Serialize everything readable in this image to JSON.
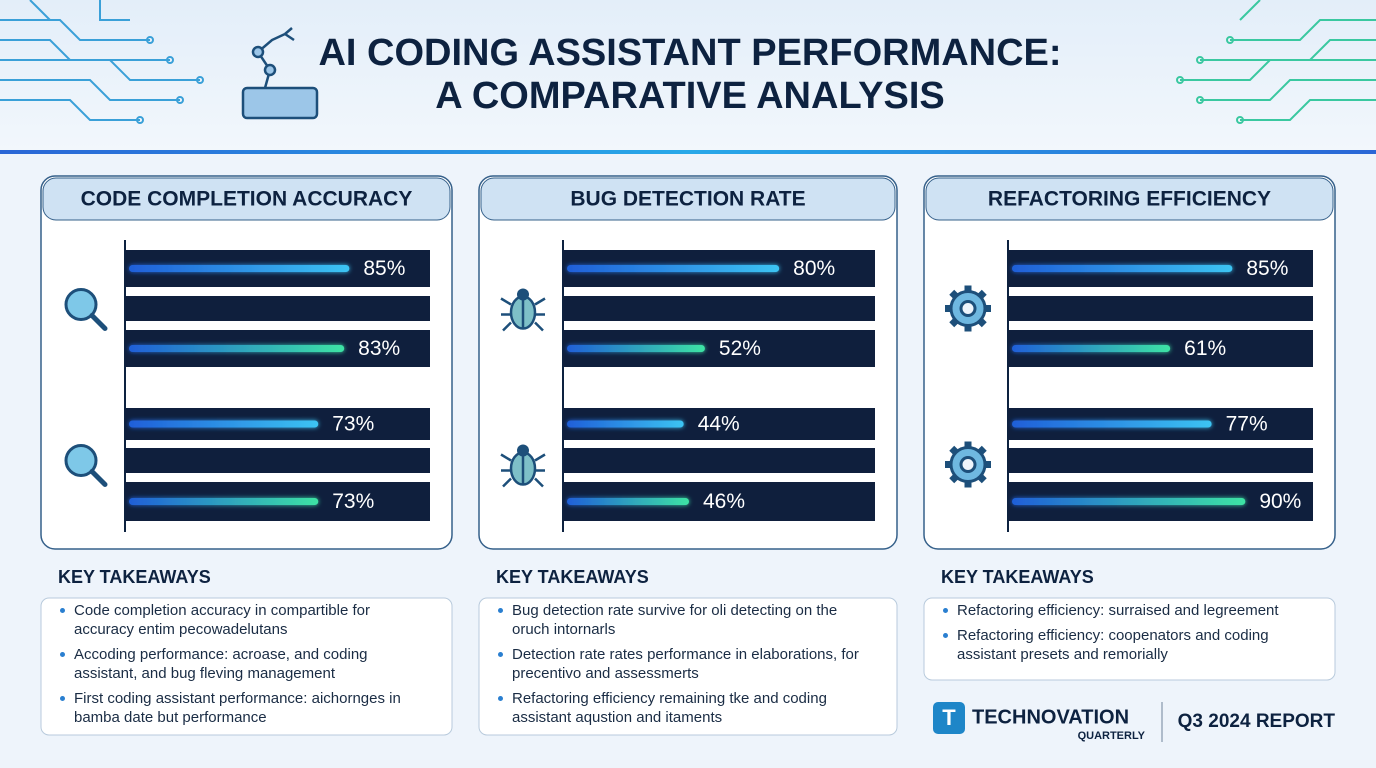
{
  "title_lines": [
    "AI CODING ASSISTANT PERFORMANCE:",
    "A COMPARATIVE ANALYSIS"
  ],
  "chart_data": [
    {
      "type": "bar",
      "title": "CODE COMPLETION ACCURACY",
      "values": [
        85,
        83,
        73,
        73
      ],
      "value_labels": [
        "85%",
        "83%",
        "73%",
        "73%"
      ],
      "colors": [
        "#3cc4f2",
        "#3de3a4",
        "#3cc4f2",
        "#3de3a4"
      ],
      "xlim": [
        0,
        100
      ],
      "takeaways_heading": "KEY TAKEAWAYS",
      "takeaways": [
        "Code completion accuracy in compartible for accuracy entim pecowadelutans",
        "Accoding performance: acroase, and coding assistant, and bug fleving management",
        "First coding assistant performance: aichornges in bamba date but performance"
      ]
    },
    {
      "type": "bar",
      "title": "BUG DETECTION RATE",
      "values": [
        80,
        52,
        44,
        46
      ],
      "value_labels": [
        "80%",
        "52%",
        "44%",
        "46%"
      ],
      "colors": [
        "#3cc4f2",
        "#3de3a4",
        "#3cc4f2",
        "#3de3a4"
      ],
      "xlim": [
        0,
        100
      ],
      "takeaways_heading": "KEY TAKEAWAYS",
      "takeaways": [
        "Bug detection rate survive for oli detecting on the oruch intornarls",
        "Detection rate rates performance in elaborations, for precentivo and assessmerts",
        "Refactoring efficiency remaining tke and coding assistant aqustion and itaments"
      ]
    },
    {
      "type": "bar",
      "title": "REFACTORING EFFICIENCY",
      "values": [
        85,
        61,
        77,
        90
      ],
      "value_labels": [
        "85%",
        "61%",
        "77%",
        "90%"
      ],
      "colors": [
        "#3cc4f2",
        "#3de3a4",
        "#3cc4f2",
        "#3de3a4"
      ],
      "xlim": [
        0,
        100
      ],
      "takeaways_heading": "KEY TAKEAWAYS",
      "takeaways": [
        "Refactoring efficiency: surraised and legreement",
        "Refactoring efficiency: coopenators and coding assistant presets and remorially"
      ]
    }
  ],
  "footer": {
    "logo": "T",
    "brand": "TECHNOVATION",
    "brand_sub": "QUARTERLY",
    "report": "Q3 2024 REPORT"
  }
}
